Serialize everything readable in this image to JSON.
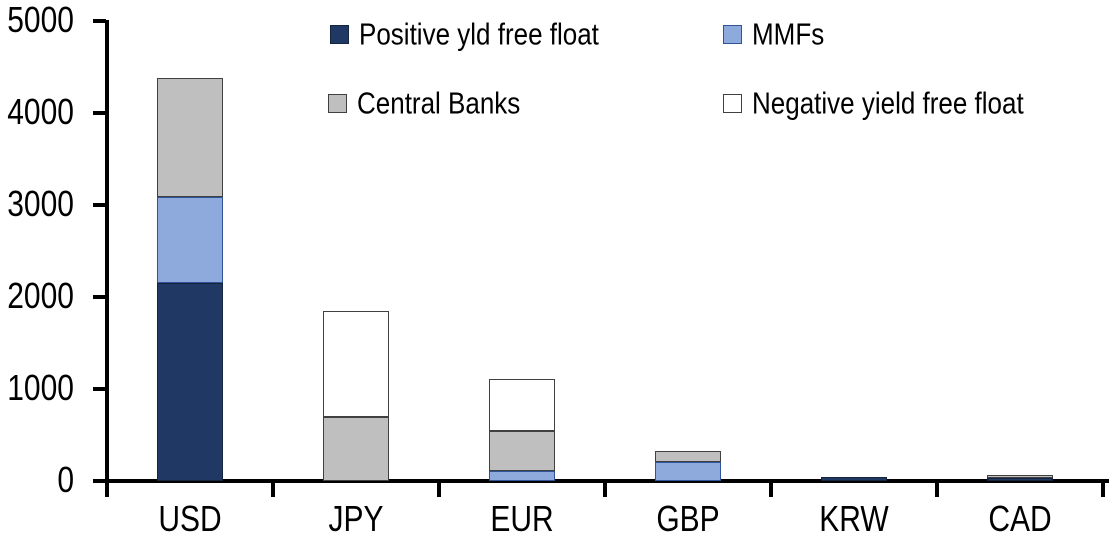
{
  "chart_data": {
    "type": "bar",
    "variant": "stacked-column",
    "title": "",
    "categories": [
      "USD",
      "JPY",
      "EUR",
      "GBP",
      "KRW",
      "CAD"
    ],
    "series": [
      {
        "name": "Positive yld free float",
        "color": "#203864",
        "border_color": "#16253f",
        "values": [
          2150,
          0,
          0,
          0,
          45,
          30
        ]
      },
      {
        "name": "MMFs",
        "color": "#8EA9DB",
        "border_color": "#2F5597",
        "values": [
          940,
          0,
          110,
          210,
          0,
          0
        ]
      },
      {
        "name": "Central Banks",
        "color": "#BFBFBF",
        "border_color": "#404040",
        "values": [
          1290,
          700,
          430,
          115,
          0,
          35
        ]
      },
      {
        "name": "Negative yield free float",
        "color": "#FFFFFF",
        "border_color": "#404040",
        "values": [
          0,
          1150,
          570,
          0,
          0,
          0
        ]
      }
    ],
    "totals": [
      4380,
      1850,
      1110,
      325,
      45,
      65
    ],
    "xlabel": "",
    "ylabel": "",
    "ylim": [
      0,
      5000
    ],
    "yticks": [
      0,
      1000,
      2000,
      3000,
      4000,
      5000
    ],
    "ytick_labels": [
      "0",
      "1000",
      "2000",
      "3000",
      "4000",
      "5000"
    ],
    "grid": false,
    "legend_position": "top",
    "legend_rows": [
      [
        "Positive yld free float",
        "MMFs"
      ],
      [
        "Central Banks",
        "Negative yield free float"
      ]
    ],
    "axis_color": "#000000",
    "background_color": "#ffffff"
  }
}
